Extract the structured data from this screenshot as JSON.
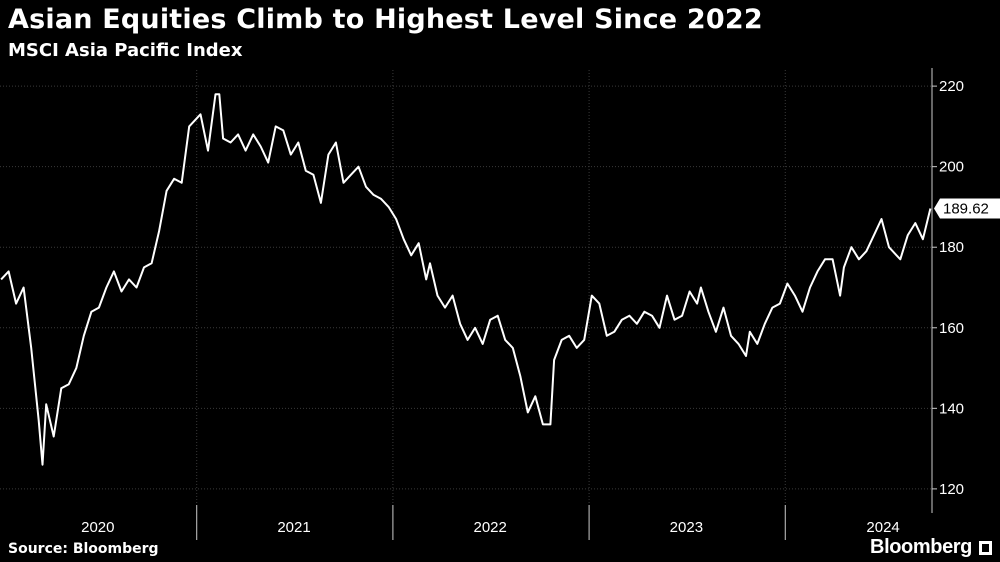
{
  "header": {
    "title": "Asian Equities Climb to Highest Level Since 2022",
    "subtitle": "MSCI Asia Pacific Index"
  },
  "footer": {
    "source": "Source: Bloomberg",
    "brand": "Bloomberg"
  },
  "colors": {
    "background": "#000000",
    "line": "#ffffff",
    "grid": "#3a3a3a",
    "text": "#ffffff"
  },
  "chart_data": {
    "type": "line",
    "title": "Asian Equities Climb to Highest Level Since 2022",
    "subtitle": "MSCI Asia Pacific Index",
    "xlabel": "",
    "ylabel": "",
    "xlim": [
      "2020-01-01",
      "2024-09-30"
    ],
    "ylim": [
      116,
      224
    ],
    "y_ticks": [
      120,
      140,
      160,
      180,
      200,
      220
    ],
    "x_tick_labels": [
      "2020",
      "2021",
      "2022",
      "2023",
      "2024"
    ],
    "x_tick_centers": [
      "2020-07-01",
      "2021-07-01",
      "2022-07-01",
      "2023-07-01",
      "2024-07-01"
    ],
    "x_dividers": [
      "2021-01-01",
      "2022-01-01",
      "2023-01-01",
      "2024-01-01"
    ],
    "grid": true,
    "y_axis_side": "right",
    "last_value_label": "189.62",
    "series": [
      {
        "x": [
          "2020-01-03",
          "2020-01-17",
          "2020-01-31",
          "2020-02-14",
          "2020-02-28",
          "2020-03-13",
          "2020-03-20",
          "2020-03-27",
          "2020-04-10",
          "2020-04-24",
          "2020-05-08",
          "2020-05-22",
          "2020-06-05",
          "2020-06-19",
          "2020-07-03",
          "2020-07-17",
          "2020-07-31",
          "2020-08-14",
          "2020-08-28",
          "2020-09-11",
          "2020-09-25",
          "2020-10-09",
          "2020-10-23",
          "2020-11-06",
          "2020-11-20",
          "2020-12-04",
          "2020-12-18",
          "2021-01-08",
          "2021-01-22",
          "2021-02-05",
          "2021-02-12",
          "2021-02-19",
          "2021-03-05",
          "2021-03-19",
          "2021-04-02",
          "2021-04-16",
          "2021-04-30",
          "2021-05-14",
          "2021-05-28",
          "2021-06-11",
          "2021-06-25",
          "2021-07-09",
          "2021-07-23",
          "2021-08-06",
          "2021-08-20",
          "2021-09-03",
          "2021-09-17",
          "2021-10-01",
          "2021-10-15",
          "2021-10-29",
          "2021-11-12",
          "2021-11-26",
          "2021-12-10",
          "2021-12-24",
          "2022-01-07",
          "2022-01-21",
          "2022-02-04",
          "2022-02-18",
          "2022-03-04",
          "2022-03-11",
          "2022-03-25",
          "2022-04-08",
          "2022-04-22",
          "2022-05-06",
          "2022-05-20",
          "2022-06-03",
          "2022-06-17",
          "2022-07-01",
          "2022-07-15",
          "2022-07-29",
          "2022-08-12",
          "2022-08-26",
          "2022-09-09",
          "2022-09-23",
          "2022-10-07",
          "2022-10-21",
          "2022-10-28",
          "2022-11-11",
          "2022-11-25",
          "2022-12-09",
          "2022-12-23",
          "2023-01-06",
          "2023-01-20",
          "2023-02-03",
          "2023-02-17",
          "2023-03-03",
          "2023-03-17",
          "2023-03-31",
          "2023-04-14",
          "2023-04-28",
          "2023-05-12",
          "2023-05-26",
          "2023-06-09",
          "2023-06-23",
          "2023-07-07",
          "2023-07-21",
          "2023-07-28",
          "2023-08-11",
          "2023-08-25",
          "2023-09-08",
          "2023-09-22",
          "2023-10-06",
          "2023-10-20",
          "2023-10-27",
          "2023-11-10",
          "2023-11-24",
          "2023-12-08",
          "2023-12-22",
          "2024-01-05",
          "2024-01-19",
          "2024-02-02",
          "2024-02-16",
          "2024-03-01",
          "2024-03-15",
          "2024-03-29",
          "2024-04-12",
          "2024-04-19",
          "2024-05-03",
          "2024-05-17",
          "2024-05-31",
          "2024-06-14",
          "2024-06-28",
          "2024-07-12",
          "2024-07-26",
          "2024-08-02",
          "2024-08-16",
          "2024-08-30",
          "2024-09-13",
          "2024-09-27"
        ],
        "y": [
          172,
          174,
          166,
          170,
          155,
          137,
          126,
          141,
          133,
          145,
          146,
          150,
          158,
          164,
          165,
          170,
          174,
          169,
          172,
          170,
          175,
          176,
          184,
          194,
          197,
          196,
          210,
          213,
          204,
          218,
          218,
          207,
          206,
          208,
          204,
          208,
          205,
          201,
          210,
          209,
          203,
          206,
          199,
          198,
          191,
          203,
          206,
          196,
          198,
          200,
          195,
          193,
          192,
          190,
          187,
          182,
          178,
          181,
          172,
          176,
          168,
          165,
          168,
          161,
          157,
          160,
          156,
          162,
          163,
          157,
          155,
          148,
          139,
          143,
          136,
          136,
          152,
          157,
          158,
          155,
          157,
          168,
          166,
          158,
          159,
          162,
          163,
          161,
          164,
          163,
          160,
          168,
          162,
          163,
          169,
          166,
          170,
          164,
          159,
          165,
          158,
          156,
          153,
          159,
          156,
          161,
          165,
          166,
          171,
          168,
          164,
          170,
          174,
          177,
          177,
          168,
          175,
          180,
          177,
          179,
          183,
          187,
          180,
          178,
          177,
          183,
          186,
          182,
          189.62
        ]
      }
    ]
  }
}
